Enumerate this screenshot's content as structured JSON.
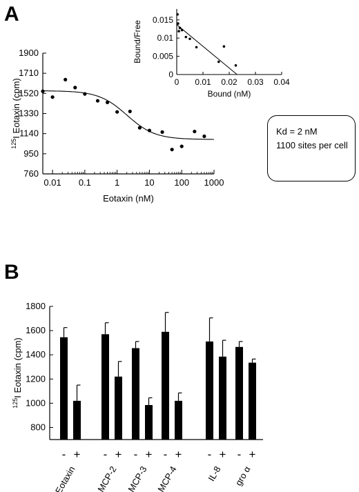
{
  "panels": {
    "a": "A",
    "b": "B"
  },
  "info_box": {
    "line1": "Kd = 2 nM",
    "line2": "1100 sites per cell"
  },
  "chart_data": [
    {
      "id": "binding",
      "type": "scatter",
      "ylabel_sup": "125",
      "ylabel": "I Eotaxin (cpm)",
      "xlabel": "Eotaxin (nM)",
      "xscale": "log",
      "xlim": [
        0.005,
        1000
      ],
      "ylim": [
        760,
        1900
      ],
      "xticks": [
        0.01,
        0.1,
        1,
        10,
        100,
        1000
      ],
      "xtick_labels": [
        "0.01",
        "0.1",
        "1",
        "10",
        "100",
        "1000"
      ],
      "yticks": [
        760,
        950,
        1140,
        1330,
        1520,
        1710,
        1900
      ],
      "ytick_labels": [
        "760",
        "950",
        "1140",
        "1330",
        "1520",
        "1710",
        "1900"
      ],
      "points": [
        {
          "x": 0.005,
          "y": 1540
        },
        {
          "x": 0.01,
          "y": 1485
        },
        {
          "x": 0.025,
          "y": 1650
        },
        {
          "x": 0.05,
          "y": 1575
        },
        {
          "x": 0.1,
          "y": 1515
        },
        {
          "x": 0.25,
          "y": 1450
        },
        {
          "x": 0.5,
          "y": 1435
        },
        {
          "x": 1,
          "y": 1345
        },
        {
          "x": 2.5,
          "y": 1350
        },
        {
          "x": 5,
          "y": 1195
        },
        {
          "x": 10,
          "y": 1170
        },
        {
          "x": 25,
          "y": 1155
        },
        {
          "x": 50,
          "y": 990
        },
        {
          "x": 100,
          "y": 1020
        },
        {
          "x": 250,
          "y": 1160
        },
        {
          "x": 500,
          "y": 1115
        }
      ],
      "fit": {
        "top": 1545,
        "bottom": 1085,
        "ec50": 2,
        "hill": 1
      }
    },
    {
      "id": "scatchard",
      "type": "scatter",
      "xlabel": "Bound (nM)",
      "ylabel": "Bound/Free",
      "xlim": [
        0,
        0.04
      ],
      "ylim": [
        0,
        0.018
      ],
      "xticks": [
        0,
        0.01,
        0.02,
        0.03,
        0.04
      ],
      "xtick_labels": [
        "0",
        "0.01",
        "0.02",
        "0.03",
        "0.04"
      ],
      "yticks": [
        0,
        0.005,
        0.01,
        0.015
      ],
      "ytick_labels": [
        "0",
        "0.005",
        "0.01",
        "0.015"
      ],
      "points": [
        {
          "x": 0.0003,
          "y": 0.0165
        },
        {
          "x": 0.0005,
          "y": 0.014
        },
        {
          "x": 0.0008,
          "y": 0.0119
        },
        {
          "x": 0.0012,
          "y": 0.0128
        },
        {
          "x": 0.002,
          "y": 0.0122
        },
        {
          "x": 0.0035,
          "y": 0.0103
        },
        {
          "x": 0.005,
          "y": 0.0098
        },
        {
          "x": 0.0075,
          "y": 0.0075
        },
        {
          "x": 0.016,
          "y": 0.0035
        },
        {
          "x": 0.018,
          "y": 0.0077
        },
        {
          "x": 0.0225,
          "y": 0.0025
        }
      ],
      "fit_line": {
        "x": [
          0,
          0.023
        ],
        "y": [
          0.0137,
          0
        ]
      }
    },
    {
      "id": "competition",
      "type": "bar",
      "ylabel_sup": "125",
      "ylabel": "I Eotaxin (cpm)",
      "ylim": [
        700,
        1800
      ],
      "yticks": [
        800,
        1000,
        1200,
        1400,
        1600,
        1800
      ],
      "ytick_labels": [
        "800",
        "1000",
        "1200",
        "1400",
        "1600",
        "1800"
      ],
      "groups": [
        {
          "name": "Eotaxin",
          "signs": [
            "-",
            "+"
          ],
          "values": [
            1545,
            1020
          ],
          "errors": [
            80,
            130
          ]
        },
        {
          "name": "MCP-2",
          "signs": [
            "-",
            "+"
          ],
          "values": [
            1570,
            1220
          ],
          "errors": [
            95,
            125
          ]
        },
        {
          "name": "MCP-3",
          "signs": [
            "-",
            "+"
          ],
          "values": [
            1455,
            985
          ],
          "errors": [
            55,
            60
          ]
        },
        {
          "name": "MCP-4",
          "signs": [
            "-",
            "+"
          ],
          "values": [
            1590,
            1020
          ],
          "errors": [
            160,
            65
          ]
        },
        {
          "name": "IL-8",
          "signs": [
            "-",
            "+"
          ],
          "values": [
            1510,
            1385
          ],
          "errors": [
            195,
            135
          ]
        },
        {
          "name": "gro α",
          "signs": [
            "-",
            "+"
          ],
          "values": [
            1465,
            1335
          ],
          "errors": [
            45,
            30
          ]
        }
      ]
    }
  ]
}
